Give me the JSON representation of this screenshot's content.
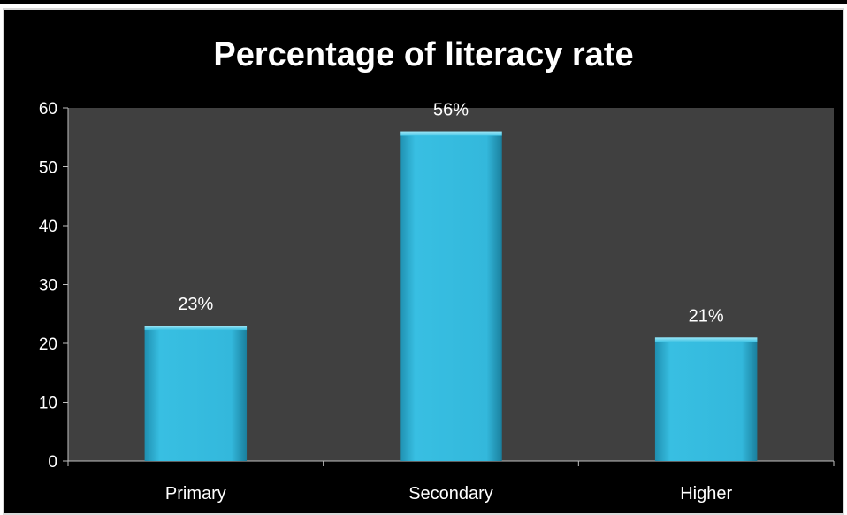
{
  "chart_data": {
    "type": "bar",
    "title": "Percentage of literacy rate",
    "categories": [
      "Primary",
      "Secondary",
      "Higher"
    ],
    "values": [
      23,
      56,
      21
    ],
    "data_labels": [
      "23%",
      "56%",
      "21%"
    ],
    "ylim": [
      0,
      60
    ],
    "yticks": [
      0,
      10,
      20,
      30,
      40,
      50,
      60
    ],
    "grid": false,
    "legend": "none",
    "colors": {
      "background": "#000000",
      "plot_area": "#404040",
      "bar": "#2eb3d6",
      "bar_light": "#5fd0ec",
      "bar_dark": "#1f87a6",
      "text": "#ffffff",
      "axis": "#bfbfbf"
    }
  }
}
